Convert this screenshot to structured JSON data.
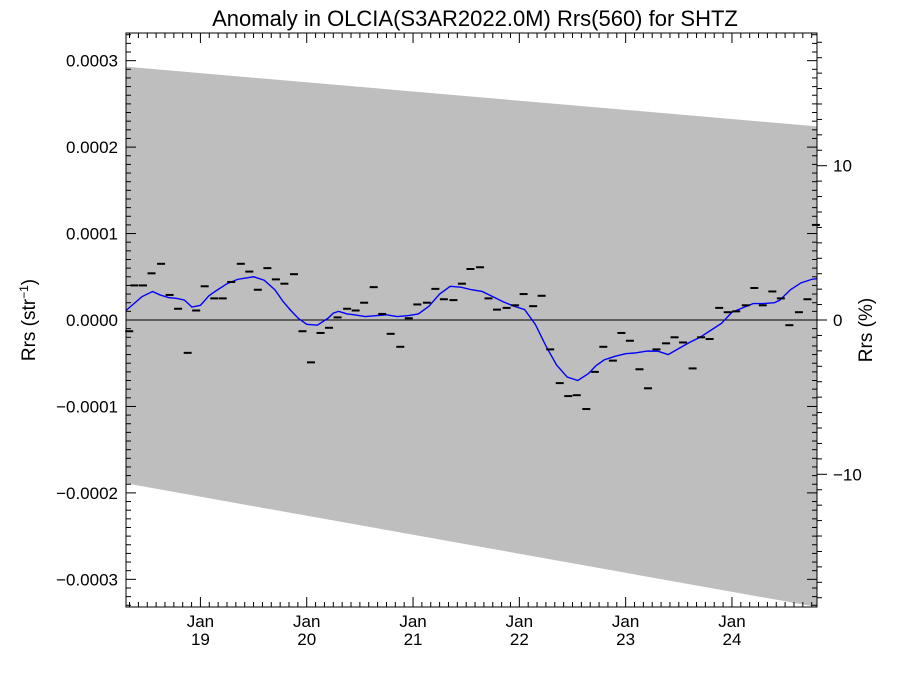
{
  "chart_data": {
    "type": "line",
    "title": "Anomaly in OLCIA(S3AR2022.0M) Rrs(560) for SHTZ",
    "ylabel_prefix": "Rrs (str",
    "ylabel_sup": "−1",
    "ylabel_suffix": ")",
    "y2label": "Rrs (%)",
    "ylim": [
      -0.000332,
      0.000332
    ],
    "y2lim": [
      -18.6,
      18.6
    ],
    "xlim": [
      2018.3,
      2024.8
    ],
    "y_ticks": [
      {
        "value": 0.0003,
        "label": "0.0003"
      },
      {
        "value": 0.0002,
        "label": "0.0002"
      },
      {
        "value": 0.0001,
        "label": "0.0001"
      },
      {
        "value": 0.0,
        "label": "0.0000"
      },
      {
        "value": -0.0001,
        "label": "−0.0001"
      },
      {
        "value": -0.0002,
        "label": "−0.0002"
      },
      {
        "value": -0.0003,
        "label": "−0.0003"
      }
    ],
    "y2_ticks": [
      {
        "value": 10,
        "label": "10"
      },
      {
        "value": 0,
        "label": "0"
      },
      {
        "value": -10,
        "label": "−10"
      }
    ],
    "x_ticks": [
      {
        "value": 2019.0,
        "month": "Jan",
        "year": "19"
      },
      {
        "value": 2020.0,
        "month": "Jan",
        "year": "20"
      },
      {
        "value": 2021.0,
        "month": "Jan",
        "year": "21"
      },
      {
        "value": 2022.0,
        "month": "Jan",
        "year": "22"
      },
      {
        "value": 2023.0,
        "month": "Jan",
        "year": "23"
      },
      {
        "value": 2024.0,
        "month": "Jan",
        "year": "24"
      }
    ],
    "uncertainty_band": {
      "x": [
        2018.3,
        2024.8
      ],
      "upper": [
        0.000293,
        0.000224
      ],
      "lower": [
        -0.000189,
        -0.000332
      ]
    },
    "monthly_points": {
      "x": [
        2018.33,
        2018.38,
        2018.46,
        2018.54,
        2018.63,
        2018.71,
        2018.79,
        2018.88,
        2018.96,
        2019.04,
        2019.13,
        2019.21,
        2019.29,
        2019.38,
        2019.46,
        2019.54,
        2019.63,
        2019.71,
        2019.79,
        2019.88,
        2019.96,
        2020.04,
        2020.13,
        2020.21,
        2020.29,
        2020.38,
        2020.46,
        2020.54,
        2020.63,
        2020.71,
        2020.79,
        2020.88,
        2020.96,
        2021.04,
        2021.13,
        2021.21,
        2021.29,
        2021.38,
        2021.46,
        2021.54,
        2021.63,
        2021.71,
        2021.79,
        2021.88,
        2021.96,
        2022.04,
        2022.13,
        2022.21,
        2022.29,
        2022.38,
        2022.46,
        2022.54,
        2022.63,
        2022.71,
        2022.79,
        2022.88,
        2022.96,
        2023.04,
        2023.13,
        2023.21,
        2023.29,
        2023.38,
        2023.46,
        2023.54,
        2023.63,
        2023.71,
        2023.79,
        2023.88,
        2023.96,
        2024.04,
        2024.13,
        2024.21,
        2024.29,
        2024.38,
        2024.46,
        2024.54,
        2024.63,
        2024.71,
        2024.79
      ],
      "y": [
        -1.3e-05,
        4e-05,
        4e-05,
        5.4e-05,
        6.5e-05,
        2.9e-05,
        1.3e-05,
        -3.8e-05,
        1.1e-05,
        3.9e-05,
        2.5e-05,
        2.5e-05,
        4.4e-05,
        6.5e-05,
        5.6e-05,
        3.5e-05,
        6e-05,
        4.7e-05,
        4.2e-05,
        5.3e-05,
        -1.3e-05,
        -4.9e-05,
        -1.5e-05,
        -9e-06,
        3e-06,
        1.3e-05,
        1.1e-05,
        2e-05,
        3.8e-05,
        7e-06,
        -1.6e-05,
        -3.1e-05,
        2e-06,
        1.8e-05,
        2e-05,
        3.6e-05,
        2.4e-05,
        2.3e-05,
        4.2e-05,
        5.9e-05,
        6.1e-05,
        2.5e-05,
        1.2e-05,
        1.4e-05,
        1.7e-05,
        3e-05,
        1.6e-05,
        2.8e-05,
        -3.4e-05,
        -7.3e-05,
        -8.8e-05,
        -8.7e-05,
        -0.000103,
        -6e-05,
        -3.1e-05,
        -4.7e-05,
        -1.5e-05,
        -2.4e-05,
        -5.7e-05,
        -7.9e-05,
        -3.4e-05,
        -2.7e-05,
        -2e-05,
        -2.6e-05,
        -5.6e-05,
        -2e-05,
        -2.2e-05,
        1.4e-05,
        9e-06,
        1e-05,
        1.7e-05,
        3.7e-05,
        1.7e-05,
        3.3e-05,
        2.5e-05,
        -6e-06,
        9e-06,
        2.4e-05,
        0.00011
      ]
    },
    "smoothed_line": {
      "color": "#0000ff",
      "x": [
        2018.3,
        2018.45,
        2018.55,
        2018.62,
        2018.7,
        2018.78,
        2018.85,
        2018.92,
        2019.0,
        2019.08,
        2019.15,
        2019.25,
        2019.35,
        2019.5,
        2019.6,
        2019.7,
        2019.78,
        2019.85,
        2019.92,
        2020.0,
        2020.1,
        2020.2,
        2020.25,
        2020.3,
        2020.38,
        2020.45,
        2020.55,
        2020.65,
        2020.75,
        2020.85,
        2020.95,
        2021.05,
        2021.15,
        2021.25,
        2021.35,
        2021.45,
        2021.55,
        2021.65,
        2021.75,
        2021.85,
        2021.95,
        2022.05,
        2022.15,
        2022.25,
        2022.35,
        2022.45,
        2022.55,
        2022.65,
        2022.72,
        2022.8,
        2022.9,
        2023.0,
        2023.1,
        2023.2,
        2023.3,
        2023.4,
        2023.5,
        2023.6,
        2023.7,
        2023.8,
        2023.9,
        2024.0,
        2024.1,
        2024.2,
        2024.3,
        2024.4,
        2024.45,
        2024.55,
        2024.65,
        2024.75,
        2024.8
      ],
      "y": [
        1.1e-05,
        2.7e-05,
        3.3e-05,
        2.9e-05,
        2.6e-05,
        2.5e-05,
        2.3e-05,
        1.5e-05,
        1.7e-05,
        2.8e-05,
        3.4e-05,
        4.2e-05,
        4.7e-05,
        5e-05,
        4.6e-05,
        3.5e-05,
        2.1e-05,
        1.1e-05,
        2e-06,
        -5e-06,
        -6e-06,
        2e-06,
        8e-06,
        1e-05,
        7e-06,
        6e-06,
        4e-06,
        5e-06,
        6e-06,
        4e-06,
        5e-06,
        7e-06,
        1.6e-05,
        3e-05,
        3.9e-05,
        3.8e-05,
        3.5e-05,
        3.3e-05,
        2.7e-05,
        2.1e-05,
        1.6e-05,
        1.2e-05,
        -5e-06,
        -3e-05,
        -5.2e-05,
        -6.6e-05,
        -7e-05,
        -6.2e-05,
        -5.3e-05,
        -4.6e-05,
        -4.2e-05,
        -3.9e-05,
        -3.8e-05,
        -3.6e-05,
        -3.6e-05,
        -4e-05,
        -3.3e-05,
        -2.6e-05,
        -2e-05,
        -1.2e-05,
        -4e-06,
        9e-06,
        1.4e-05,
        1.9e-05,
        1.9e-05,
        2e-05,
        2.3e-05,
        3.5e-05,
        4.3e-05,
        4.7e-05,
        4.8e-05
      ]
    },
    "zero_line": 0
  }
}
